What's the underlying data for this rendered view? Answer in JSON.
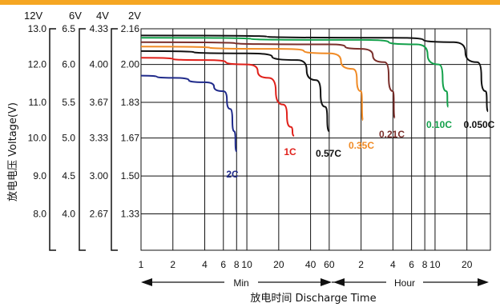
{
  "colors": {
    "accent_bar": "#f5a623"
  },
  "chart_data": {
    "type": "line",
    "title": "",
    "ylabel": "放电电压 Voltage(V)",
    "xlabel": "放电时间 Discharge Time",
    "x_scale": "log",
    "grid": true,
    "voltage_columns": [
      {
        "header": "12V",
        "ticks": [
          "13.0",
          "12.0",
          "11.0",
          "10.0",
          "9.0",
          "8.0"
        ]
      },
      {
        "header": "6V",
        "ticks": [
          "6.5",
          "6.0",
          "5.5",
          "5.0",
          "4.5",
          "4.0"
        ]
      },
      {
        "header": "4V",
        "ticks": [
          "4.33",
          "4.00",
          "3.67",
          "3.33",
          "3.00",
          "2.67"
        ]
      },
      {
        "header": "2V",
        "ticks": [
          "2.16",
          "2.00",
          "1.83",
          "1.67",
          "1.50",
          "1.33"
        ]
      }
    ],
    "y_values_2v": [
      2.16,
      2.0,
      1.83,
      1.67,
      1.5,
      1.33
    ],
    "ylim_2v": [
      1.167,
      2.16
    ],
    "x_ticks": [
      {
        "label": "1",
        "minutes": 1
      },
      {
        "label": "2",
        "minutes": 2
      },
      {
        "label": "4",
        "minutes": 4
      },
      {
        "label": "6",
        "minutes": 6
      },
      {
        "label": "8",
        "minutes": 8
      },
      {
        "label": "10",
        "minutes": 10
      },
      {
        "label": "20",
        "minutes": 20
      },
      {
        "label": "40",
        "minutes": 40
      },
      {
        "label": "60",
        "minutes": 60
      },
      {
        "label": "2",
        "minutes": 120
      },
      {
        "label": "4",
        "minutes": 240
      },
      {
        "label": "6",
        "minutes": 360
      },
      {
        "label": "8",
        "minutes": 480
      },
      {
        "label": "10",
        "minutes": 600
      },
      {
        "label": "20",
        "minutes": 1200
      }
    ],
    "xlim_minutes": [
      1,
      2000
    ],
    "range_labels": {
      "min": "Min",
      "hour": "Hour"
    },
    "series": [
      {
        "name": "2C",
        "color": "#1f2a8a",
        "points": [
          [
            1,
            1.95
          ],
          [
            2,
            1.94
          ],
          [
            4,
            1.92
          ],
          [
            6,
            1.88
          ],
          [
            7,
            1.8
          ],
          [
            7.6,
            1.7
          ],
          [
            8,
            1.61
          ]
        ]
      },
      {
        "name": "1C",
        "color": "#e0201a",
        "points": [
          [
            1,
            2.03
          ],
          [
            4,
            2.02
          ],
          [
            10,
            2.0
          ],
          [
            16,
            1.94
          ],
          [
            22,
            1.82
          ],
          [
            26,
            1.72
          ],
          [
            28,
            1.68
          ]
        ]
      },
      {
        "name": "0.57C",
        "color": "#111111",
        "points": [
          [
            1,
            2.06
          ],
          [
            10,
            2.05
          ],
          [
            30,
            2.02
          ],
          [
            45,
            1.93
          ],
          [
            55,
            1.81
          ],
          [
            60,
            1.7
          ]
        ]
      },
      {
        "name": "0.35C",
        "color": "#f08a24",
        "points": [
          [
            1,
            2.08
          ],
          [
            20,
            2.07
          ],
          [
            60,
            2.05
          ],
          [
            100,
            1.98
          ],
          [
            120,
            1.88
          ],
          [
            125,
            1.75
          ]
        ]
      },
      {
        "name": "0.21C",
        "color": "#7a2e2a",
        "points": [
          [
            1,
            2.1
          ],
          [
            60,
            2.09
          ],
          [
            120,
            2.07
          ],
          [
            200,
            2.01
          ],
          [
            240,
            1.88
          ],
          [
            250,
            1.76
          ]
        ]
      },
      {
        "name": "0.10C",
        "color": "#12a04a",
        "points": [
          [
            1,
            2.12
          ],
          [
            120,
            2.11
          ],
          [
            400,
            2.09
          ],
          [
            650,
            2.0
          ],
          [
            770,
            1.88
          ],
          [
            800,
            1.81
          ]
        ]
      },
      {
        "name": "0.050C",
        "color": "#111111",
        "points": [
          [
            1,
            2.13
          ],
          [
            240,
            2.12
          ],
          [
            900,
            2.1
          ],
          [
            1500,
            2.01
          ],
          [
            1800,
            1.88
          ],
          [
            1900,
            1.79
          ]
        ]
      }
    ]
  }
}
